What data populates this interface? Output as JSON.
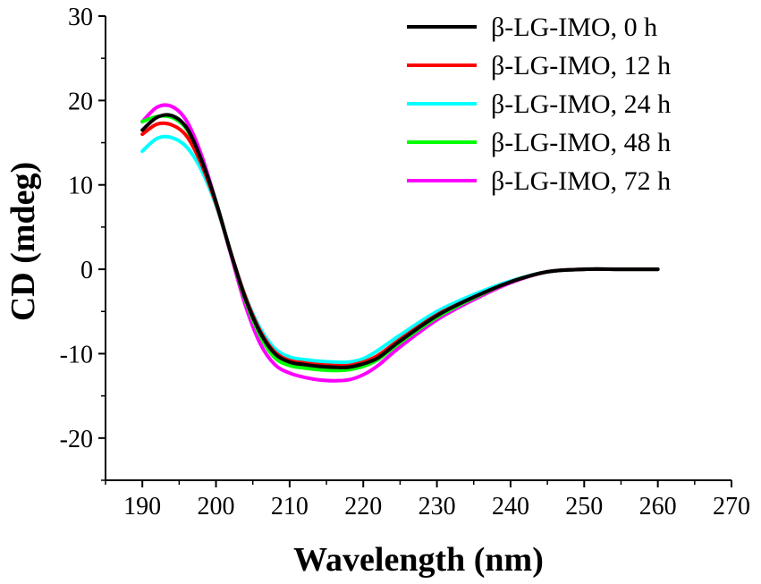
{
  "chart_data": {
    "type": "line",
    "title": "",
    "xlabel": "Wavelength (nm)",
    "ylabel": "CD (mdeg)",
    "xlim": [
      185,
      270
    ],
    "ylim": [
      -25,
      30
    ],
    "xticks": [
      190,
      200,
      210,
      220,
      230,
      240,
      250,
      260,
      270
    ],
    "yticks": [
      -20,
      -10,
      0,
      10,
      20,
      30
    ],
    "xtick_labels": [
      "190",
      "200",
      "210",
      "220",
      "230",
      "240",
      "250",
      "260",
      "270"
    ],
    "ytick_labels": [
      "-20",
      "-10",
      "0",
      "10",
      "20",
      "30"
    ],
    "legend_position": "top-right",
    "x": [
      190,
      192,
      194,
      196,
      198,
      200,
      202,
      204,
      206,
      208,
      210,
      212,
      214,
      216,
      218,
      220,
      222,
      225,
      230,
      235,
      240,
      245,
      250,
      255,
      260
    ],
    "series": [
      {
        "name": "β-LG-IMO, 0 h",
        "color": "#000000",
        "values": [
          16.5,
          18.0,
          18.2,
          16.8,
          13.0,
          8.0,
          2.0,
          -3.5,
          -7.5,
          -10.0,
          -11.0,
          -11.3,
          -11.5,
          -11.6,
          -11.6,
          -11.2,
          -10.5,
          -8.5,
          -5.5,
          -3.3,
          -1.5,
          -0.3,
          0,
          0,
          0
        ]
      },
      {
        "name": "β-LG-IMO, 12 h",
        "color": "#ff0000",
        "values": [
          16.0,
          17.2,
          17.1,
          15.8,
          12.5,
          7.8,
          2.0,
          -3.3,
          -7.3,
          -9.8,
          -10.8,
          -11.1,
          -11.3,
          -11.4,
          -11.4,
          -11.0,
          -10.2,
          -8.3,
          -5.4,
          -3.3,
          -1.5,
          -0.3,
          0,
          0,
          0
        ]
      },
      {
        "name": "β-LG-IMO, 24 h",
        "color": "#00ffff",
        "values": [
          14.0,
          15.5,
          15.6,
          14.5,
          11.8,
          7.6,
          2.0,
          -3.2,
          -7.0,
          -9.4,
          -10.4,
          -10.7,
          -10.9,
          -11.0,
          -11.0,
          -10.6,
          -9.6,
          -7.8,
          -5.0,
          -3.0,
          -1.4,
          -0.3,
          0,
          0,
          0
        ]
      },
      {
        "name": "β-LG-IMO, 48 h",
        "color": "#00ff00",
        "values": [
          17.5,
          18.1,
          18.0,
          16.6,
          13.0,
          8.0,
          2.0,
          -3.7,
          -7.9,
          -10.5,
          -11.4,
          -11.7,
          -11.9,
          -12.0,
          -11.9,
          -11.5,
          -10.7,
          -8.7,
          -5.7,
          -3.4,
          -1.5,
          -0.3,
          0,
          0,
          0
        ]
      },
      {
        "name": "β-LG-IMO, 72 h",
        "color": "#ff00ff",
        "values": [
          17.5,
          19.2,
          19.3,
          17.6,
          13.6,
          8.0,
          1.8,
          -4.3,
          -8.8,
          -11.3,
          -12.3,
          -12.8,
          -13.1,
          -13.2,
          -13.1,
          -12.5,
          -11.4,
          -9.2,
          -6.0,
          -3.6,
          -1.6,
          -0.3,
          0,
          0,
          0
        ]
      }
    ]
  }
}
